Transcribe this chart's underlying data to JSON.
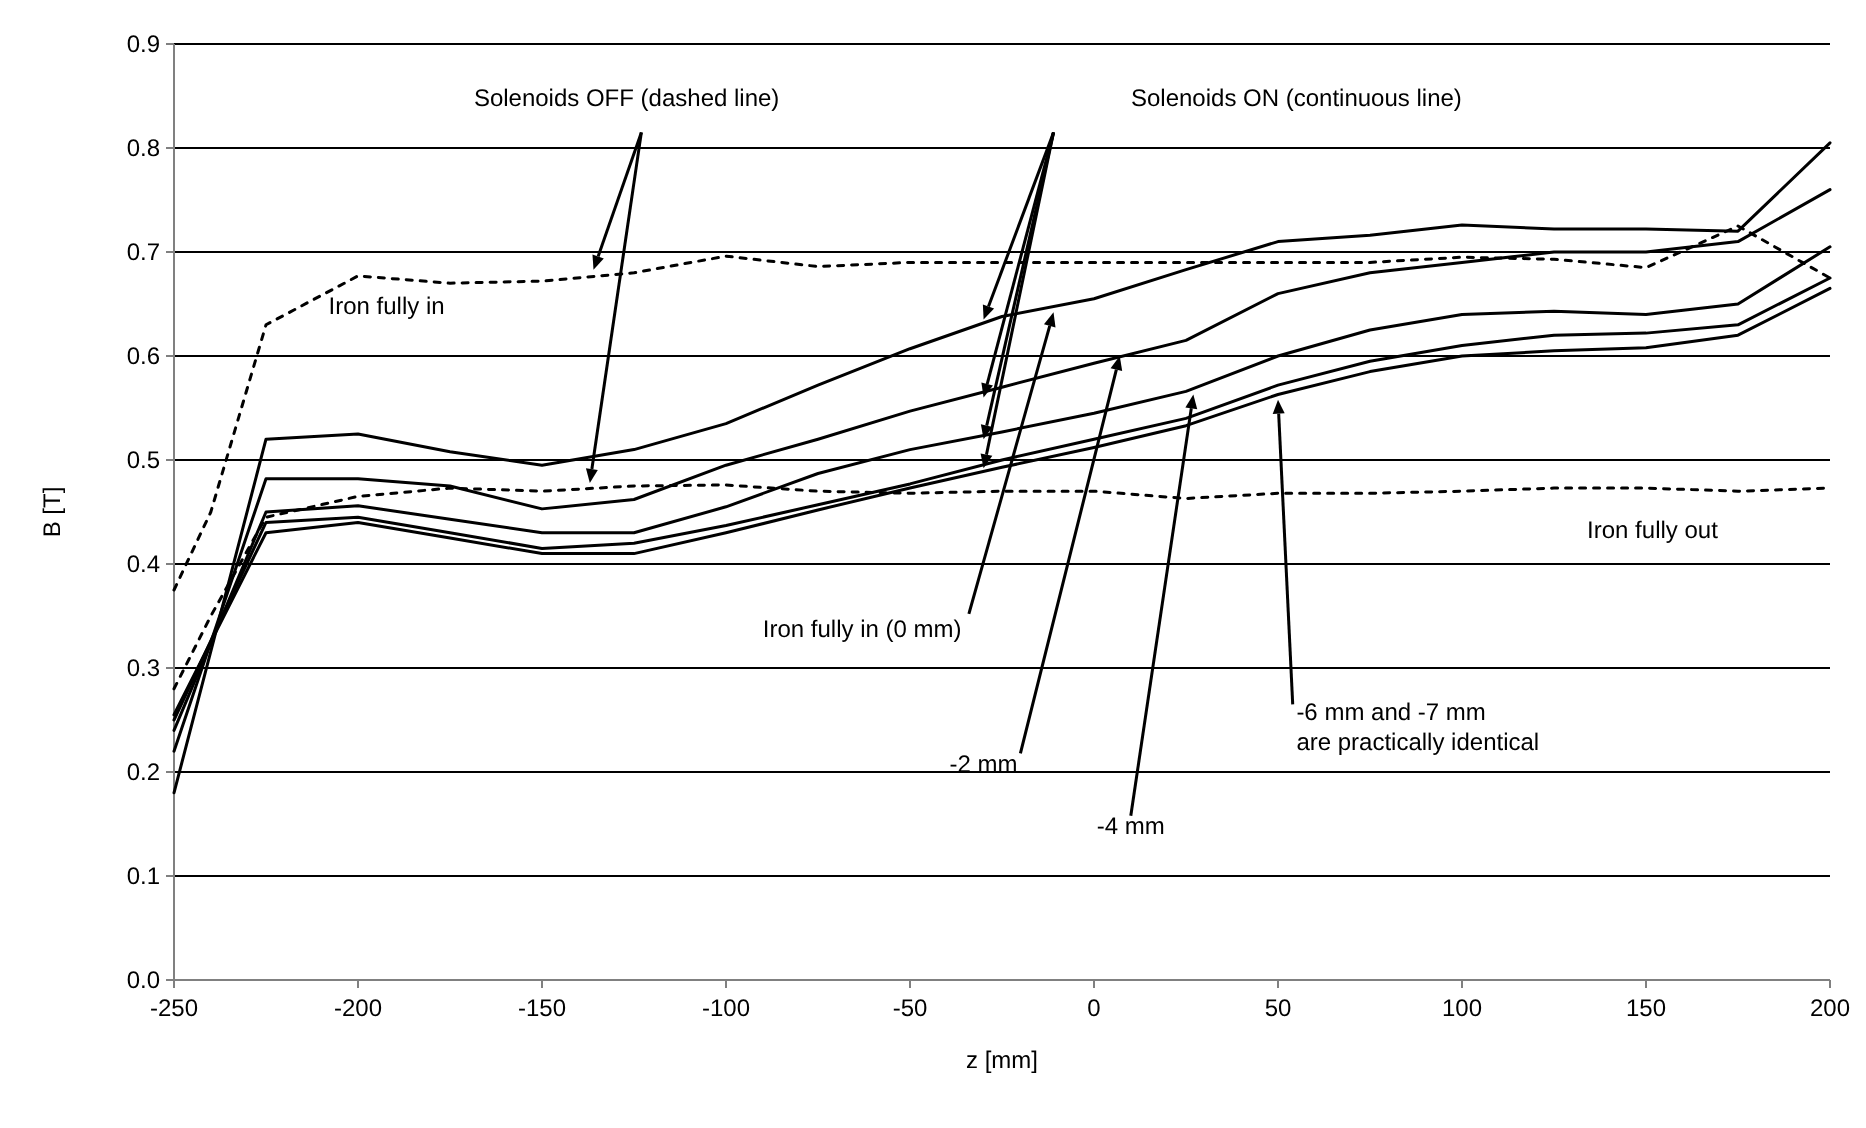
{
  "chart_data": {
    "type": "line",
    "xlabel": "z [mm]",
    "ylabel": "B [T]",
    "x": [
      -250,
      -225,
      -200,
      -175,
      -150,
      -125,
      -100,
      -75,
      -50,
      -25,
      0,
      25,
      50,
      75,
      100,
      125,
      150,
      175,
      200
    ],
    "series": [
      {
        "color": "#000000",
        "line_style": "solid",
        "values": [
          0.18,
          0.52,
          0.525,
          0.508,
          0.495,
          0.51,
          0.535,
          0.572,
          0.607,
          0.638,
          0.655,
          0.683,
          0.71,
          0.716,
          0.726,
          0.722,
          0.722,
          0.72,
          0.805
        ]
      },
      {
        "color": "#000000",
        "line_style": "solid",
        "values": [
          0.22,
          0.482,
          0.482,
          0.475,
          0.453,
          0.462,
          0.495,
          0.52,
          0.547,
          0.57,
          0.593,
          0.615,
          0.66,
          0.68,
          0.69,
          0.7,
          0.7,
          0.71,
          0.76
        ]
      },
      {
        "color": "#000000",
        "line_style": "solid",
        "values": [
          0.24,
          0.45,
          0.456,
          0.443,
          0.43,
          0.43,
          0.455,
          0.487,
          0.51,
          0.527,
          0.545,
          0.566,
          0.6,
          0.625,
          0.64,
          0.643,
          0.64,
          0.65,
          0.705
        ]
      },
      {
        "color": "#000000",
        "line_style": "solid",
        "values": [
          0.25,
          0.44,
          0.445,
          0.43,
          0.415,
          0.42,
          0.437,
          0.457,
          0.477,
          0.5,
          0.52,
          0.54,
          0.572,
          0.595,
          0.61,
          0.62,
          0.622,
          0.63,
          0.675
        ]
      },
      {
        "color": "#000000",
        "line_style": "solid",
        "values": [
          0.255,
          0.43,
          0.44,
          0.425,
          0.41,
          0.41,
          0.43,
          0.452,
          0.473,
          0.493,
          0.512,
          0.533,
          0.563,
          0.585,
          0.6,
          0.605,
          0.608,
          0.62,
          0.665
        ]
      },
      {
        "color": "#000000",
        "line_style": "dashed",
        "x": [
          -250,
          -240,
          -225,
          -200,
          -175,
          -150,
          -125,
          -100,
          -75,
          -50,
          -25,
          0,
          25,
          50,
          75,
          100,
          125,
          150,
          175,
          200
        ],
        "values": [
          0.375,
          0.45,
          0.63,
          0.677,
          0.67,
          0.672,
          0.68,
          0.696,
          0.686,
          0.69,
          0.69,
          0.69,
          0.69,
          0.69,
          0.69,
          0.695,
          0.693,
          0.685,
          0.725,
          0.675
        ]
      },
      {
        "color": "#000000",
        "line_style": "dashed",
        "x": [
          -250,
          -240,
          -225,
          -200,
          -175,
          -150,
          -125,
          -100,
          -75,
          -50,
          -25,
          0,
          25,
          50,
          75,
          100,
          125,
          150,
          175,
          200
        ],
        "values": [
          0.28,
          0.35,
          0.445,
          0.465,
          0.473,
          0.47,
          0.475,
          0.476,
          0.47,
          0.468,
          0.47,
          0.47,
          0.463,
          0.468,
          0.468,
          0.47,
          0.473,
          0.473,
          0.47,
          0.473
        ]
      }
    ],
    "annotations": [
      "Solenoids OFF (dashed line)",
      "Solenoids ON (continuous line)",
      "Iron fully in",
      {
        "text": "Iron fully in (0 mm)",
        "x": -11,
        "y": 0.642
      },
      {
        "text": "-2 mm",
        "x": 7,
        "y": 0.6
      },
      {
        "text": "-4 mm",
        "x": 27,
        "y": 0.563
      },
      {
        "text": "-6 mm and -7 mm\nare practically identical",
        "x": 50,
        "y": 0.558
      },
      "Iron fully out"
    ],
    "xlim": [
      -250,
      200
    ],
    "xticks": [
      -250,
      -200,
      -150,
      -100,
      -50,
      0,
      50,
      100,
      150,
      200
    ],
    "ylim": [
      0,
      0.9
    ],
    "yticks": [
      {
        "value": 0,
        "label": "0.0"
      },
      0.1,
      0.2,
      0.3,
      0.4,
      0.5,
      0.6,
      0.7,
      0.8,
      0.9
    ],
    "grid": "y",
    "marker": "none"
  }
}
